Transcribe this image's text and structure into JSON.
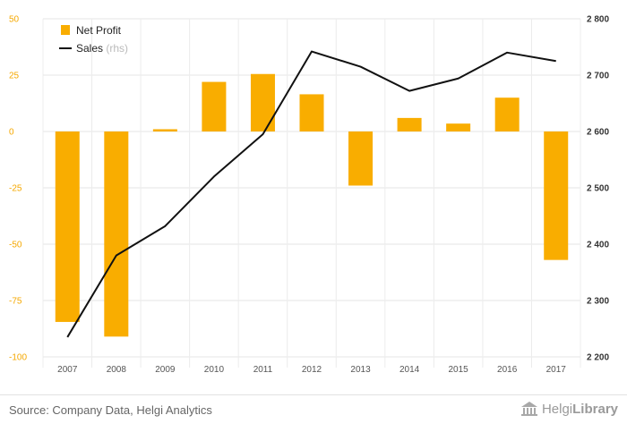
{
  "chart_data": {
    "type": "bar",
    "categories": [
      "2007",
      "2008",
      "2009",
      "2010",
      "2011",
      "2012",
      "2013",
      "2014",
      "2015",
      "2016",
      "2017"
    ],
    "series": [
      {
        "name": "Net Profit",
        "type": "bar",
        "axis": "left",
        "color": "#f9ad00",
        "values": [
          -84.5,
          -91,
          1,
          22,
          25.5,
          16.5,
          -24,
          6,
          3.5,
          15,
          -57
        ]
      },
      {
        "name": "Sales",
        "name_note": "(rhs)",
        "type": "line",
        "axis": "right",
        "color": "#111111",
        "values": [
          2235,
          2380,
          2432,
          2520,
          2595,
          2742,
          2715,
          2672,
          2694,
          2740,
          2725
        ]
      }
    ],
    "left_axis": {
      "min": -100,
      "max": 50,
      "ticks": [
        "50",
        "25",
        "0",
        "-25",
        "-50",
        "-75",
        "-100"
      ],
      "tick_values": [
        50,
        25,
        0,
        -25,
        -50,
        -75,
        -100
      ]
    },
    "right_axis": {
      "min": 2200,
      "max": 2800,
      "ticks": [
        "2 800",
        "2 700",
        "2 600",
        "2 500",
        "2 400",
        "2 300",
        "2 200"
      ],
      "tick_values": [
        2800,
        2700,
        2600,
        2500,
        2400,
        2300,
        2200
      ]
    },
    "grid": true,
    "legend_position": "top-left"
  },
  "legend": {
    "net_profit": "Net Profit",
    "sales": "Sales",
    "sales_note": "(rhs)"
  },
  "footer": {
    "source": "Source: Company Data, Helgi Analytics",
    "logo_prefix": "Helgi",
    "logo_suffix": "Library"
  }
}
